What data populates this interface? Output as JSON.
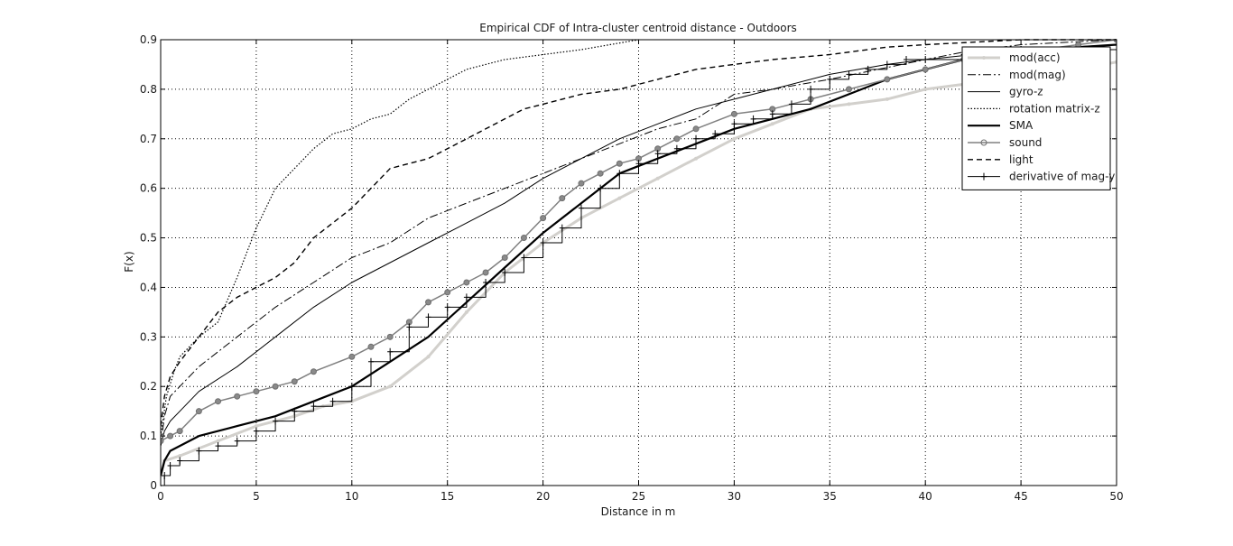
{
  "chart_data": {
    "type": "line",
    "title": "Empirical CDF of Intra-cluster centroid distance - Outdoors",
    "xlabel": "Distance in m",
    "ylabel": "F(x)",
    "xlim": [
      0,
      50
    ],
    "ylim": [
      0,
      0.9
    ],
    "x_ticks": [
      0,
      5,
      10,
      15,
      20,
      25,
      30,
      35,
      40,
      45,
      50
    ],
    "y_ticks": [
      0,
      0.1,
      0.2,
      0.3,
      0.4,
      0.5,
      0.6,
      0.7,
      0.8,
      0.9
    ],
    "x_tick_labels": [
      "0",
      "5",
      "10",
      "15",
      "20",
      "25",
      "30",
      "35",
      "40",
      "45",
      "50"
    ],
    "y_tick_labels": [
      "0",
      "0.1",
      "0.2",
      "0.3",
      "0.4",
      "0.5",
      "0.6",
      "0.7",
      "0.8",
      "0.9"
    ],
    "grid": true,
    "legend_position": "top-right",
    "series": [
      {
        "name": "mod(acc)",
        "color": "#d2d0cc",
        "style": "thick-marker",
        "points": [
          [
            0,
            0.02
          ],
          [
            0.2,
            0.05
          ],
          [
            1,
            0.06
          ],
          [
            3,
            0.09
          ],
          [
            5,
            0.12
          ],
          [
            7,
            0.14
          ],
          [
            8.5,
            0.16
          ],
          [
            10,
            0.17
          ],
          [
            12,
            0.2
          ],
          [
            14,
            0.26
          ],
          [
            16,
            0.35
          ],
          [
            18,
            0.43
          ],
          [
            20,
            0.49
          ],
          [
            22,
            0.54
          ],
          [
            24,
            0.58
          ],
          [
            26,
            0.62
          ],
          [
            28,
            0.66
          ],
          [
            30,
            0.7
          ],
          [
            32,
            0.73
          ],
          [
            34,
            0.76
          ],
          [
            36,
            0.77
          ],
          [
            38,
            0.78
          ],
          [
            40,
            0.8
          ],
          [
            42,
            0.81
          ],
          [
            45,
            0.83
          ],
          [
            48,
            0.84
          ],
          [
            50,
            0.855
          ]
        ]
      },
      {
        "name": "mod(mag)",
        "color": "#000000",
        "style": "dashdot",
        "points": [
          [
            0,
            0.08
          ],
          [
            0.2,
            0.14
          ],
          [
            0.5,
            0.18
          ],
          [
            1,
            0.2
          ],
          [
            2,
            0.24
          ],
          [
            4,
            0.3
          ],
          [
            6,
            0.36
          ],
          [
            8,
            0.41
          ],
          [
            10,
            0.46
          ],
          [
            12,
            0.49
          ],
          [
            14,
            0.54
          ],
          [
            16,
            0.57
          ],
          [
            18,
            0.6
          ],
          [
            20,
            0.63
          ],
          [
            22,
            0.66
          ],
          [
            24,
            0.69
          ],
          [
            26,
            0.72
          ],
          [
            28,
            0.74
          ],
          [
            30,
            0.79
          ],
          [
            32,
            0.8
          ],
          [
            35,
            0.82
          ],
          [
            40,
            0.86
          ],
          [
            42,
            0.875
          ],
          [
            45,
            0.89
          ],
          [
            50,
            0.9
          ]
        ]
      },
      {
        "name": "gyro-z",
        "color": "#000000",
        "style": "solid-thin",
        "points": [
          [
            0,
            0.08
          ],
          [
            0.2,
            0.11
          ],
          [
            0.5,
            0.13
          ],
          [
            1,
            0.15
          ],
          [
            2,
            0.19
          ],
          [
            4,
            0.24
          ],
          [
            6,
            0.3
          ],
          [
            8,
            0.36
          ],
          [
            10,
            0.41
          ],
          [
            12,
            0.45
          ],
          [
            14,
            0.49
          ],
          [
            16,
            0.53
          ],
          [
            18,
            0.57
          ],
          [
            20,
            0.62
          ],
          [
            22,
            0.66
          ],
          [
            24,
            0.7
          ],
          [
            26,
            0.73
          ],
          [
            28,
            0.76
          ],
          [
            30,
            0.78
          ],
          [
            32,
            0.8
          ],
          [
            35,
            0.83
          ],
          [
            38,
            0.85
          ],
          [
            40,
            0.86
          ],
          [
            45,
            0.88
          ],
          [
            50,
            0.89
          ]
        ]
      },
      {
        "name": "rotation matrix-z",
        "color": "#000000",
        "style": "dotted",
        "points": [
          [
            0,
            0.1
          ],
          [
            0.3,
            0.18
          ],
          [
            0.7,
            0.23
          ],
          [
            1,
            0.26
          ],
          [
            2,
            0.3
          ],
          [
            3,
            0.33
          ],
          [
            4,
            0.42
          ],
          [
            5,
            0.52
          ],
          [
            6,
            0.6
          ],
          [
            7,
            0.64
          ],
          [
            8,
            0.68
          ],
          [
            9,
            0.71
          ],
          [
            10,
            0.72
          ],
          [
            11,
            0.74
          ],
          [
            12,
            0.75
          ],
          [
            13,
            0.78
          ],
          [
            14,
            0.8
          ],
          [
            15,
            0.82
          ],
          [
            16,
            0.84
          ],
          [
            17,
            0.85
          ],
          [
            18,
            0.86
          ],
          [
            20,
            0.87
          ],
          [
            22,
            0.88
          ],
          [
            25,
            0.9
          ]
        ]
      },
      {
        "name": "SMA",
        "color": "#000000",
        "style": "solid-thick",
        "points": [
          [
            0,
            0.02
          ],
          [
            0.2,
            0.05
          ],
          [
            0.5,
            0.07
          ],
          [
            1,
            0.08
          ],
          [
            2,
            0.1
          ],
          [
            4,
            0.12
          ],
          [
            6,
            0.14
          ],
          [
            8,
            0.17
          ],
          [
            10,
            0.2
          ],
          [
            12,
            0.25
          ],
          [
            14,
            0.3
          ],
          [
            16,
            0.37
          ],
          [
            18,
            0.44
          ],
          [
            20,
            0.51
          ],
          [
            22,
            0.57
          ],
          [
            24,
            0.63
          ],
          [
            26,
            0.66
          ],
          [
            28,
            0.69
          ],
          [
            30,
            0.72
          ],
          [
            32,
            0.74
          ],
          [
            34,
            0.76
          ],
          [
            36,
            0.79
          ],
          [
            38,
            0.82
          ],
          [
            40,
            0.84
          ],
          [
            42,
            0.86
          ],
          [
            45,
            0.875
          ],
          [
            48,
            0.885
          ],
          [
            50,
            0.89
          ]
        ]
      },
      {
        "name": "sound",
        "color": "#808080",
        "style": "marker-circle",
        "points": [
          [
            0,
            0.09
          ],
          [
            0.5,
            0.1
          ],
          [
            1,
            0.11
          ],
          [
            2,
            0.15
          ],
          [
            3,
            0.17
          ],
          [
            4,
            0.18
          ],
          [
            5,
            0.19
          ],
          [
            6,
            0.2
          ],
          [
            7,
            0.21
          ],
          [
            8,
            0.23
          ],
          [
            10,
            0.26
          ],
          [
            11,
            0.28
          ],
          [
            12,
            0.3
          ],
          [
            13,
            0.33
          ],
          [
            14,
            0.37
          ],
          [
            15,
            0.39
          ],
          [
            16,
            0.41
          ],
          [
            17,
            0.43
          ],
          [
            18,
            0.46
          ],
          [
            19,
            0.5
          ],
          [
            20,
            0.54
          ],
          [
            21,
            0.58
          ],
          [
            22,
            0.61
          ],
          [
            23,
            0.63
          ],
          [
            24,
            0.65
          ],
          [
            25,
            0.66
          ],
          [
            26,
            0.68
          ],
          [
            27,
            0.7
          ],
          [
            28,
            0.72
          ],
          [
            30,
            0.75
          ],
          [
            32,
            0.76
          ],
          [
            34,
            0.78
          ],
          [
            36,
            0.8
          ],
          [
            38,
            0.82
          ],
          [
            40,
            0.84
          ],
          [
            42,
            0.86
          ],
          [
            44,
            0.87
          ],
          [
            46,
            0.88
          ],
          [
            48,
            0.89
          ],
          [
            50,
            0.9
          ]
        ]
      },
      {
        "name": "light",
        "color": "#000000",
        "style": "dashed",
        "points": [
          [
            0,
            0.12
          ],
          [
            0.2,
            0.18
          ],
          [
            0.5,
            0.22
          ],
          [
            1,
            0.25
          ],
          [
            2,
            0.3
          ],
          [
            3,
            0.35
          ],
          [
            4,
            0.38
          ],
          [
            5,
            0.4
          ],
          [
            6,
            0.42
          ],
          [
            7,
            0.45
          ],
          [
            8,
            0.5
          ],
          [
            9,
            0.53
          ],
          [
            10,
            0.56
          ],
          [
            11,
            0.6
          ],
          [
            12,
            0.64
          ],
          [
            13,
            0.65
          ],
          [
            14,
            0.66
          ],
          [
            15,
            0.68
          ],
          [
            16,
            0.7
          ],
          [
            17,
            0.72
          ],
          [
            18,
            0.74
          ],
          [
            19,
            0.76
          ],
          [
            20,
            0.77
          ],
          [
            22,
            0.79
          ],
          [
            24,
            0.8
          ],
          [
            25,
            0.81
          ],
          [
            26,
            0.82
          ],
          [
            28,
            0.84
          ],
          [
            30,
            0.85
          ],
          [
            32,
            0.86
          ],
          [
            35,
            0.87
          ],
          [
            38,
            0.885
          ],
          [
            40,
            0.89
          ],
          [
            45,
            0.9
          ],
          [
            50,
            0.9
          ]
        ]
      },
      {
        "name": "derivative of mag-y",
        "color": "#000000",
        "style": "step-plus",
        "points": [
          [
            0,
            0
          ],
          [
            0.2,
            0.02
          ],
          [
            0.5,
            0.04
          ],
          [
            1,
            0.05
          ],
          [
            2,
            0.07
          ],
          [
            3,
            0.08
          ],
          [
            4,
            0.09
          ],
          [
            5,
            0.11
          ],
          [
            6,
            0.13
          ],
          [
            7,
            0.15
          ],
          [
            8,
            0.16
          ],
          [
            9,
            0.17
          ],
          [
            10,
            0.2
          ],
          [
            11,
            0.25
          ],
          [
            12,
            0.27
          ],
          [
            13,
            0.32
          ],
          [
            14,
            0.34
          ],
          [
            15,
            0.36
          ],
          [
            16,
            0.38
          ],
          [
            17,
            0.41
          ],
          [
            18,
            0.43
          ],
          [
            19,
            0.46
          ],
          [
            20,
            0.49
          ],
          [
            21,
            0.52
          ],
          [
            22,
            0.56
          ],
          [
            23,
            0.6
          ],
          [
            24,
            0.63
          ],
          [
            25,
            0.65
          ],
          [
            26,
            0.67
          ],
          [
            27,
            0.68
          ],
          [
            28,
            0.7
          ],
          [
            29,
            0.71
          ],
          [
            30,
            0.73
          ],
          [
            31,
            0.74
          ],
          [
            32,
            0.75
          ],
          [
            33,
            0.77
          ],
          [
            34,
            0.8
          ],
          [
            35,
            0.82
          ],
          [
            36,
            0.83
          ],
          [
            37,
            0.84
          ],
          [
            38,
            0.85
          ],
          [
            39,
            0.86
          ],
          [
            40,
            0.86
          ],
          [
            42,
            0.87
          ],
          [
            45,
            0.88
          ],
          [
            50,
            0.89
          ]
        ]
      }
    ]
  }
}
